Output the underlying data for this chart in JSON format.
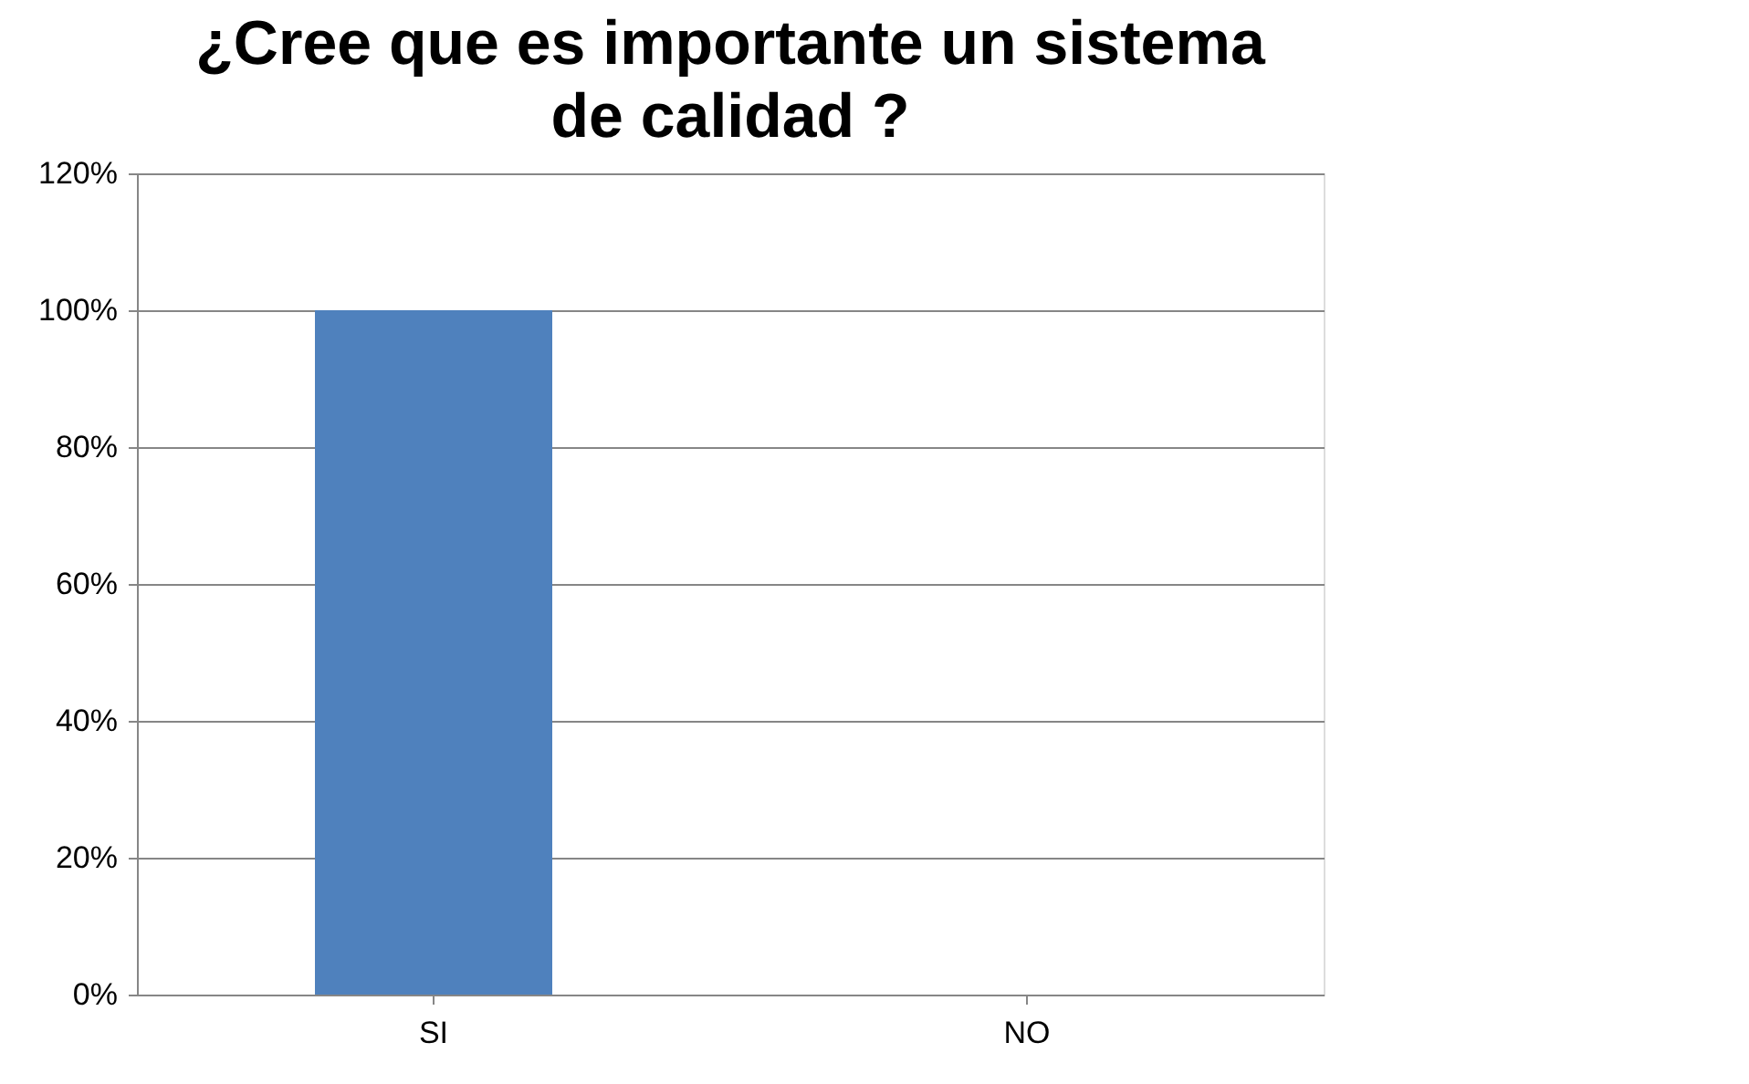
{
  "chart_data": {
    "type": "bar",
    "title": "¿Cree que es importante un sistema de calidad ?",
    "categories": [
      "SI",
      "NO"
    ],
    "values": [
      100,
      0
    ],
    "color": "#4f81bd",
    "ylim": [
      0,
      120
    ],
    "yticks": [
      {
        "value": 0,
        "label": "0%"
      },
      {
        "value": 20,
        "label": "20%"
      },
      {
        "value": 40,
        "label": "40%"
      },
      {
        "value": 60,
        "label": "60%"
      },
      {
        "value": 80,
        "label": "80%"
      },
      {
        "value": 100,
        "label": "100%"
      },
      {
        "value": 120,
        "label": "120%"
      }
    ],
    "grid": "y"
  }
}
